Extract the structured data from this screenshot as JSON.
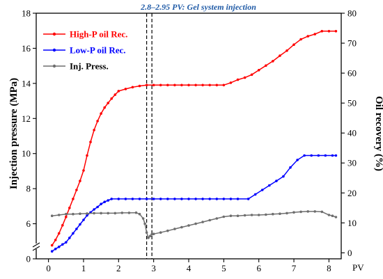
{
  "chart_data": {
    "type": "line",
    "title": "",
    "annotation": "2.8–2.95 PV: Gel system injection",
    "xlabel": "PV",
    "xlim": [
      -0.35,
      8.35
    ],
    "x_ticks": [
      0,
      1,
      2,
      3,
      4,
      5,
      6,
      7,
      8
    ],
    "left_axis": {
      "label": "Injection pressure (MPa)",
      "lim": [
        4,
        18
      ],
      "ticks": [
        6,
        8,
        10,
        12,
        14,
        16,
        18
      ],
      "break_tick": 0
    },
    "right_axis": {
      "label": "Oil recovery (%)",
      "lim": [
        -2,
        80
      ],
      "ticks": [
        0,
        10,
        20,
        30,
        40,
        50,
        60,
        70,
        80
      ]
    },
    "markers_x": [
      2.8,
      2.95
    ],
    "legend_position": "top-left",
    "series": [
      {
        "name": "High-P oil Rec.",
        "axis": "right",
        "color": "#ff0000",
        "x": [
          0.1,
          0.2,
          0.3,
          0.4,
          0.5,
          0.6,
          0.7,
          0.8,
          0.9,
          1.0,
          1.1,
          1.2,
          1.3,
          1.4,
          1.5,
          1.6,
          1.7,
          1.8,
          1.9,
          2.0,
          2.2,
          2.4,
          2.6,
          2.8,
          3.0,
          3.2,
          3.4,
          3.6,
          3.8,
          4.0,
          4.2,
          4.4,
          4.6,
          4.8,
          5.0,
          5.2,
          5.4,
          5.6,
          5.8,
          6.0,
          6.2,
          6.4,
          6.6,
          6.8,
          7.0,
          7.2,
          7.4,
          7.6,
          7.8,
          8.0,
          8.2
        ],
        "values": [
          2.5,
          4.3,
          6.5,
          9.2,
          12,
          15,
          18,
          21,
          24,
          27.5,
          32.5,
          37,
          41,
          44,
          46.5,
          48.5,
          50,
          51.5,
          52.8,
          54,
          54.7,
          55.3,
          55.7,
          56,
          56,
          56,
          56,
          56,
          56,
          56,
          56,
          56,
          56,
          56,
          56,
          56.8,
          57.8,
          58.5,
          59.5,
          61,
          62.5,
          64,
          65.8,
          67.5,
          69.5,
          71.3,
          72.3,
          73,
          74,
          74,
          74
        ]
      },
      {
        "name": "Low-P oil Rec.",
        "axis": "right",
        "color": "#0000ff",
        "x": [
          0.1,
          0.2,
          0.3,
          0.4,
          0.5,
          0.6,
          0.7,
          0.8,
          0.9,
          1.0,
          1.1,
          1.2,
          1.3,
          1.4,
          1.5,
          1.6,
          1.7,
          1.8,
          2.0,
          2.2,
          2.4,
          2.6,
          2.8,
          3.0,
          3.2,
          3.4,
          3.6,
          3.8,
          4.0,
          4.2,
          4.4,
          4.6,
          4.8,
          5.0,
          5.2,
          5.4,
          5.7,
          5.9,
          6.1,
          6.3,
          6.5,
          6.7,
          6.9,
          7.1,
          7.3,
          7.5,
          7.7,
          7.9,
          8.1,
          8.2
        ],
        "values": [
          0.5,
          1.3,
          2,
          2.8,
          3.5,
          5,
          6.5,
          8,
          9.5,
          11,
          12.5,
          13.5,
          14.5,
          15.3,
          16.3,
          17,
          17.5,
          18,
          18,
          18,
          18,
          18,
          18,
          18,
          18,
          18,
          18,
          18,
          18,
          18,
          18,
          18,
          18,
          18,
          18,
          18,
          18,
          19.5,
          21,
          22.5,
          24,
          25.5,
          28.5,
          31,
          32.5,
          32.5,
          32.5,
          32.5,
          32.5,
          32.5
        ]
      },
      {
        "name": "Inj. Press.",
        "axis": "left",
        "color": "#6e6e6e",
        "x": [
          0.1,
          0.3,
          0.5,
          0.7,
          0.9,
          1.1,
          1.3,
          1.5,
          1.7,
          1.9,
          2.1,
          2.3,
          2.5,
          2.6,
          2.7,
          2.75,
          2.8,
          2.85,
          2.9,
          2.95,
          3.0,
          3.2,
          3.4,
          3.6,
          3.8,
          4.0,
          4.2,
          4.4,
          4.6,
          4.8,
          5.0,
          5.2,
          5.4,
          5.6,
          5.8,
          6.0,
          6.2,
          6.4,
          6.6,
          6.8,
          7.0,
          7.2,
          7.4,
          7.6,
          7.8,
          8.0,
          8.1,
          8.2
        ],
        "values": [
          6.45,
          6.5,
          6.55,
          6.55,
          6.57,
          6.58,
          6.6,
          6.6,
          6.6,
          6.6,
          6.62,
          6.62,
          6.63,
          6.55,
          6.3,
          6.0,
          5.5,
          5.2,
          5.3,
          5.4,
          5.42,
          5.5,
          5.6,
          5.7,
          5.8,
          5.9,
          6.0,
          6.1,
          6.2,
          6.3,
          6.4,
          6.45,
          6.45,
          6.48,
          6.5,
          6.5,
          6.52,
          6.55,
          6.57,
          6.6,
          6.65,
          6.68,
          6.7,
          6.7,
          6.68,
          6.5,
          6.45,
          6.38
        ]
      }
    ]
  }
}
